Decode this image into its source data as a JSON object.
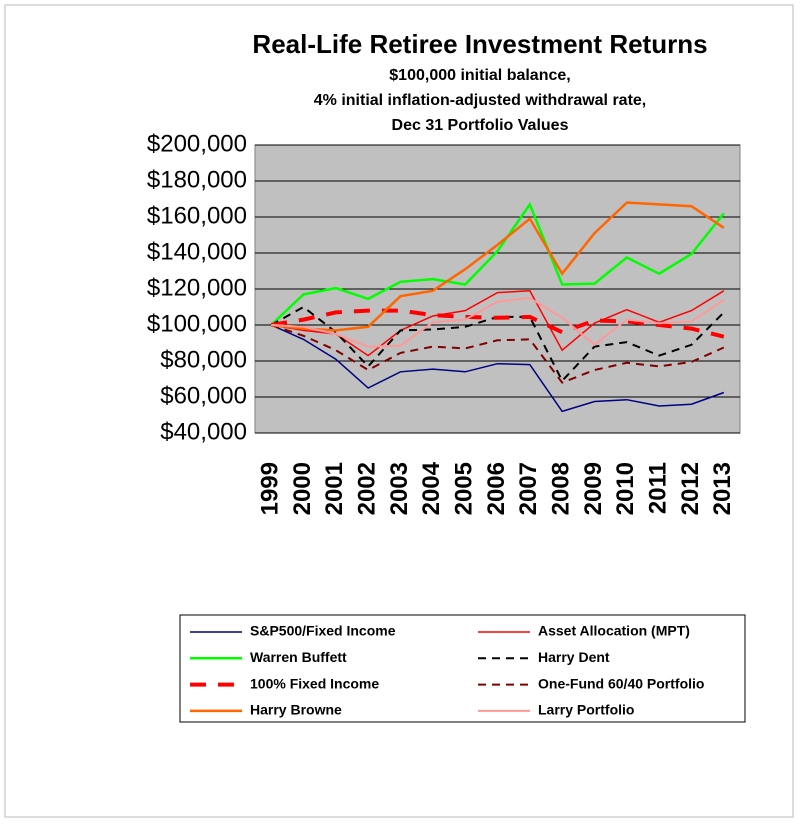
{
  "chart_data": {
    "type": "line",
    "title": "Real-Life Retiree Investment Returns",
    "subtitle": [
      "$100,000 initial balance,",
      "4% initial inflation-adjusted withdrawal rate,",
      "Dec 31 Portfolio Values"
    ],
    "categories": [
      "1999",
      "2000",
      "2001",
      "2002",
      "2003",
      "2004",
      "2005",
      "2006",
      "2007",
      "2008",
      "2009",
      "2010",
      "2011",
      "2012",
      "2013"
    ],
    "ylim": [
      40000,
      200000
    ],
    "yticks": [
      {
        "value": 40000,
        "label": "$40,000"
      },
      {
        "value": 60000,
        "label": "$60,000"
      },
      {
        "value": 80000,
        "label": "$80,000"
      },
      {
        "value": 100000,
        "label": "$100,000"
      },
      {
        "value": 120000,
        "label": "$120,000"
      },
      {
        "value": 140000,
        "label": "$140,000"
      },
      {
        "value": 160000,
        "label": "$160,000"
      },
      {
        "value": 180000,
        "label": "$180,000"
      },
      {
        "value": 200000,
        "label": "$200,000"
      }
    ],
    "grid": true,
    "series": [
      {
        "name": "S&P500/Fixed Income",
        "color": "#000080",
        "line_style": "solid",
        "line_width": 1.5,
        "values": [
          100000,
          92000,
          81000,
          65000,
          74000,
          75500,
          74000,
          78500,
          78000,
          52000,
          57500,
          58500,
          55000,
          56000,
          62500
        ]
      },
      {
        "name": "Asset Allocation (MPT)",
        "color": "#ff0000",
        "line_style": "solid",
        "line_width": 1.5,
        "values": [
          100000,
          97000,
          95000,
          83000,
          97000,
          105000,
          108000,
          118000,
          119000,
          86000,
          101000,
          108500,
          101500,
          108000,
          119000
        ]
      },
      {
        "name": "Warren Buffett",
        "color": "#00ff00",
        "line_style": "solid",
        "line_width": 2.5,
        "values": [
          100000,
          117000,
          120500,
          114500,
          124000,
          125500,
          122500,
          141000,
          167000,
          122500,
          123000,
          137500,
          128500,
          139500,
          162000
        ]
      },
      {
        "name": "Harry Dent",
        "color": "#000000",
        "line_style": "dashed",
        "line_width": 2,
        "values": [
          100000,
          110000,
          96000,
          77000,
          97000,
          97500,
          99000,
          104500,
          104500,
          69000,
          88000,
          90500,
          83000,
          89000,
          107000
        ]
      },
      {
        "name": "100% Fixed Income",
        "color": "#ff0000",
        "line_style": "dashed",
        "line_width": 4,
        "values": [
          100000,
          103000,
          107000,
          108000,
          108000,
          105500,
          104500,
          104000,
          104500,
          96000,
          102500,
          102000,
          100000,
          98000,
          93500
        ]
      },
      {
        "name": "One-Fund 60/40 Portfolio",
        "color": "#800000",
        "line_style": "dashed",
        "line_width": 2,
        "values": [
          100000,
          94000,
          86000,
          75000,
          84500,
          88000,
          87000,
          91500,
          92000,
          68000,
          75000,
          79000,
          77000,
          79500,
          87500
        ]
      },
      {
        "name": "Harry Browne",
        "color": "#ff6600",
        "line_style": "solid",
        "line_width": 2.5,
        "values": [
          100000,
          98000,
          97000,
          99000,
          116000,
          119000,
          131000,
          144500,
          159000,
          128500,
          151000,
          168000,
          167000,
          166000,
          154000
        ]
      },
      {
        "name": "Larry Portfolio",
        "color": "#ff9999",
        "line_style": "solid",
        "line_width": 2,
        "values": [
          100000,
          99000,
          95000,
          88000,
          88500,
          101500,
          103000,
          113000,
          115000,
          104000,
          89000,
          103000,
          101000,
          102000,
          114000
        ]
      }
    ]
  }
}
